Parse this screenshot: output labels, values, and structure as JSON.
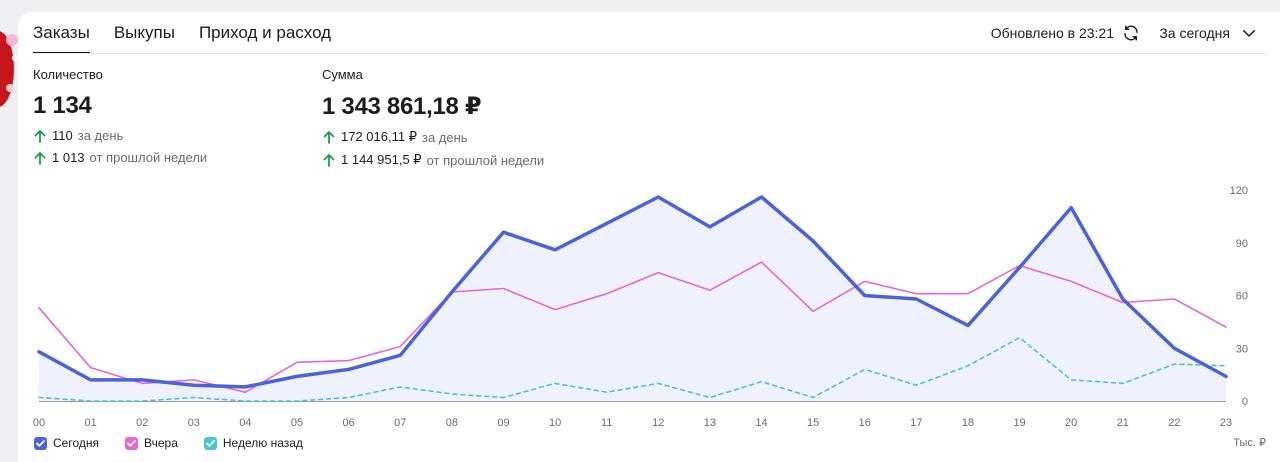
{
  "tabs": [
    {
      "label": "Заказы",
      "active": true
    },
    {
      "label": "Выкупы",
      "active": false
    },
    {
      "label": "Приход и расход",
      "active": false
    }
  ],
  "header": {
    "updated": "Обновлено в 23:21",
    "period": "За сегодня",
    "refresh_icon": "refresh-icon",
    "chevron_icon": "chevron-down-icon"
  },
  "metrics": {
    "quantity": {
      "label": "Количество",
      "value": "1 134",
      "day_value": "110",
      "day_label": "за день",
      "week_value": "1 013",
      "week_label": "от прошлой недели"
    },
    "sum": {
      "label": "Сумма",
      "value": "1 343 861,18 ₽",
      "day_value": "172 016,11 ₽",
      "day_label": "за день",
      "week_value": "1 144 951,5 ₽",
      "week_label": "от прошлой недели"
    }
  },
  "colors": {
    "today": "#4b63d9",
    "yesterday": "#e865d4",
    "week_ago": "#4cc3d4",
    "up": "#1f9a4a"
  },
  "legend": [
    {
      "label": "Сегодня",
      "color": "#4b63d9"
    },
    {
      "label": "Вчера",
      "color": "#e865d4"
    },
    {
      "label": "Неделю назад",
      "color": "#4cc3d4"
    }
  ],
  "units": "Тыс. ₽",
  "chart_data": {
    "type": "area",
    "categories": [
      "00",
      "01",
      "02",
      "03",
      "04",
      "05",
      "06",
      "07",
      "08",
      "09",
      "10",
      "11",
      "12",
      "13",
      "14",
      "15",
      "16",
      "17",
      "18",
      "19",
      "20",
      "21",
      "22",
      "23"
    ],
    "ylim": [
      0,
      120
    ],
    "yticks": [
      0,
      30,
      60,
      90,
      120
    ],
    "ytick_labels": [
      "0",
      "30",
      "60",
      "90",
      "120"
    ],
    "y_axis_position": "right",
    "grid": false,
    "legend_position": "bottom-left",
    "series": [
      {
        "name": "Сегодня",
        "values": [
          28,
          12,
          12,
          9,
          8,
          14,
          18,
          26,
          62,
          96,
          86,
          101,
          116,
          99,
          116,
          91,
          60,
          58,
          43,
          76,
          110,
          58,
          30,
          14
        ]
      },
      {
        "name": "Вчера",
        "values": [
          53,
          19,
          10,
          12,
          5,
          22,
          23,
          31,
          62,
          64,
          52,
          61,
          73,
          63,
          79,
          51,
          68,
          61,
          61,
          77,
          68,
          56,
          58,
          42
        ]
      },
      {
        "name": "Неделю назад",
        "values": [
          2,
          0,
          0,
          2,
          0,
          0,
          2,
          8,
          4,
          2,
          10,
          5,
          10,
          2,
          11,
          2,
          18,
          9,
          20,
          36,
          12,
          10,
          21,
          20
        ]
      }
    ]
  }
}
